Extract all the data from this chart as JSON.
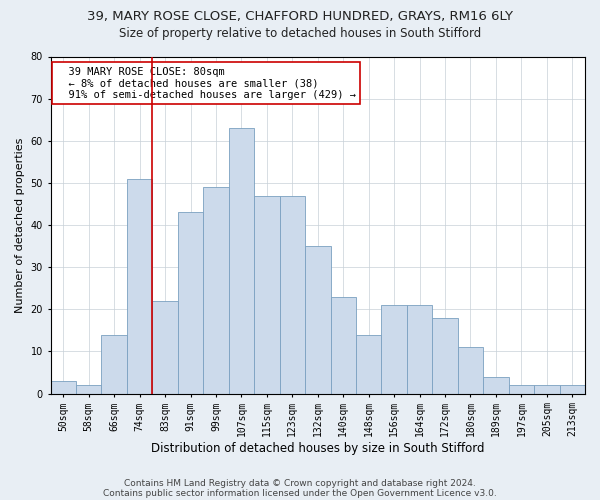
{
  "title1": "39, MARY ROSE CLOSE, CHAFFORD HUNDRED, GRAYS, RM16 6LY",
  "title2": "Size of property relative to detached houses in South Stifford",
  "xlabel": "Distribution of detached houses by size in South Stifford",
  "ylabel": "Number of detached properties",
  "footnote1": "Contains HM Land Registry data © Crown copyright and database right 2024.",
  "footnote2": "Contains public sector information licensed under the Open Government Licence v3.0.",
  "bin_labels": [
    "50sqm",
    "58sqm",
    "66sqm",
    "74sqm",
    "83sqm",
    "91sqm",
    "99sqm",
    "107sqm",
    "115sqm",
    "123sqm",
    "132sqm",
    "140sqm",
    "148sqm",
    "156sqm",
    "164sqm",
    "172sqm",
    "180sqm",
    "189sqm",
    "197sqm",
    "205sqm",
    "213sqm"
  ],
  "bar_heights": [
    3,
    2,
    14,
    51,
    22,
    43,
    49,
    63,
    47,
    47,
    35,
    23,
    14,
    21,
    21,
    18,
    11,
    4,
    2,
    2,
    2
  ],
  "bar_color": "#ccdaeb",
  "bar_edge_color": "#7aa0c0",
  "vline_index": 4,
  "vline_color": "#cc0000",
  "annotation_text": "  39 MARY ROSE CLOSE: 80sqm\n  ← 8% of detached houses are smaller (38)\n  91% of semi-detached houses are larger (429) →",
  "annotation_box_color": "white",
  "annotation_box_edge": "#cc0000",
  "ylim": [
    0,
    80
  ],
  "yticks": [
    0,
    10,
    20,
    30,
    40,
    50,
    60,
    70,
    80
  ],
  "background_color": "#e8eef4",
  "plot_bg_color": "white",
  "grid_color": "#c8d0d8",
  "title1_fontsize": 9.5,
  "title2_fontsize": 8.5,
  "xlabel_fontsize": 8.5,
  "ylabel_fontsize": 8,
  "tick_fontsize": 7,
  "annotation_fontsize": 7.5,
  "footnote_fontsize": 6.5
}
